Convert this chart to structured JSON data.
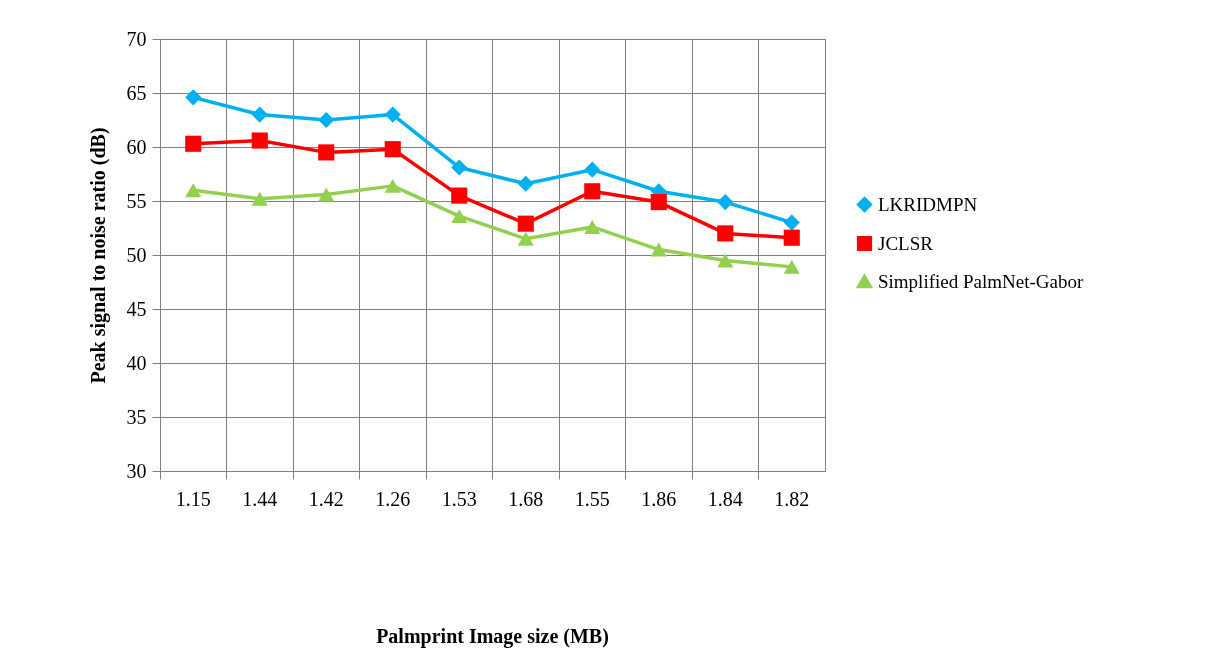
{
  "chart_data": {
    "type": "line",
    "annotations": [
      "Palmprint Image size (MB)"
    ],
    "ylabel": "Peak signal to noise ratio (dB)",
    "categories": [
      "1.15",
      "1.44",
      "1.42",
      "1.26",
      "1.53",
      "1.68",
      "1.55",
      "1.86",
      "1.84",
      "1.82"
    ],
    "series": [
      {
        "name": "LKRIDMPN",
        "color": "#00b0f0",
        "marker": "diamond",
        "values": [
          64.6,
          63.0,
          62.5,
          63.0,
          58.1,
          56.6,
          57.9,
          55.9,
          54.9,
          53.0
        ]
      },
      {
        "name": "JCLSR",
        "color": "#ff0000",
        "marker": "square",
        "values": [
          60.3,
          60.6,
          59.5,
          59.8,
          55.5,
          52.9,
          55.9,
          54.9,
          52.0,
          51.6
        ]
      },
      {
        "name": "Simplified PalmNet-Gabor",
        "color": "#92d050",
        "marker": "triangle",
        "values": [
          56.0,
          55.2,
          55.6,
          56.4,
          53.6,
          51.5,
          52.6,
          50.5,
          49.5,
          48.9
        ]
      }
    ],
    "ylim": [
      30,
      70
    ],
    "yticks": [
      30,
      35,
      40,
      45,
      50,
      55,
      60,
      65,
      70
    ],
    "grid": true,
    "legend": "right"
  }
}
